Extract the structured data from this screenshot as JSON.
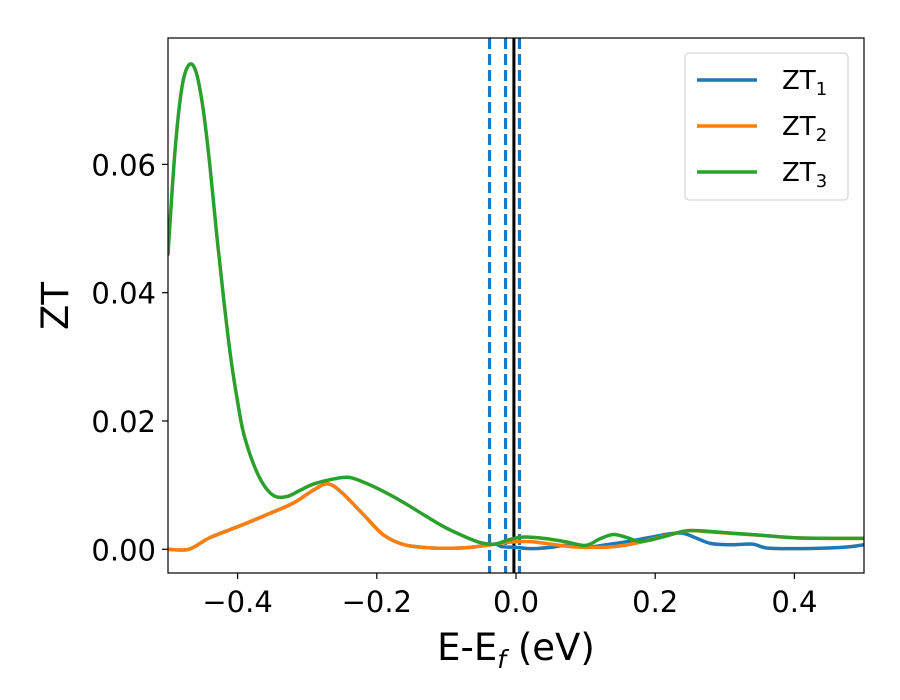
{
  "chart_data": {
    "type": "line",
    "title": "",
    "xlabel_main": "E-E",
    "xlabel_sub": "f",
    "xlabel_unit": " (eV)",
    "ylabel": "ZT",
    "xlim": [
      -0.5,
      0.5
    ],
    "ylim": [
      -0.0037,
      0.0797
    ],
    "grid": false,
    "legend_position": "top-right",
    "x_ticks": [
      {
        "value": -0.4,
        "label": "−0.4"
      },
      {
        "value": -0.2,
        "label": "−0.2"
      },
      {
        "value": 0.0,
        "label": "0.0"
      },
      {
        "value": 0.2,
        "label": "0.2"
      },
      {
        "value": 0.4,
        "label": "0.4"
      }
    ],
    "y_ticks": [
      {
        "value": 0.0,
        "label": "0.00"
      },
      {
        "value": 0.02,
        "label": "0.02"
      },
      {
        "value": 0.04,
        "label": "0.04"
      },
      {
        "value": 0.06,
        "label": "0.06"
      }
    ],
    "vertical_lines": [
      {
        "x": -0.038,
        "style": "dashed",
        "color": "#1f77b4"
      },
      {
        "x": -0.015,
        "style": "dashed",
        "color": "#1f77b4"
      },
      {
        "x": 0.005,
        "style": "dashed",
        "color": "#1f77b4"
      },
      {
        "x": -0.003,
        "style": "solid",
        "color": "#000000"
      }
    ],
    "series": [
      {
        "name_main": "ZT",
        "name_sub": "1",
        "color": "#1f77b4",
        "points": [
          [
            -0.5,
            0.0
          ],
          [
            -0.47,
            0.0
          ],
          [
            -0.44,
            0.0018
          ],
          [
            -0.4,
            0.0035
          ],
          [
            -0.36,
            0.0053
          ],
          [
            -0.32,
            0.0072
          ],
          [
            -0.29,
            0.0093
          ],
          [
            -0.27,
            0.0102
          ],
          [
            -0.25,
            0.0088
          ],
          [
            -0.22,
            0.0055
          ],
          [
            -0.19,
            0.0022
          ],
          [
            -0.16,
            0.0007
          ],
          [
            -0.12,
            0.0002
          ],
          [
            -0.08,
            0.0002
          ],
          [
            -0.05,
            0.0005
          ],
          [
            -0.03,
            0.0008
          ],
          [
            -0.02,
            0.0004
          ],
          [
            0.0,
            0.0003
          ],
          [
            0.02,
            0.0001
          ],
          [
            0.05,
            0.0003
          ],
          [
            0.07,
            0.0006
          ],
          [
            0.1,
            0.0003
          ],
          [
            0.13,
            0.0007
          ],
          [
            0.16,
            0.0012
          ],
          [
            0.19,
            0.0018
          ],
          [
            0.22,
            0.0024
          ],
          [
            0.24,
            0.0025
          ],
          [
            0.26,
            0.0017
          ],
          [
            0.28,
            0.0009
          ],
          [
            0.31,
            0.0007
          ],
          [
            0.34,
            0.0008
          ],
          [
            0.36,
            0.0002
          ],
          [
            0.4,
            0.0001
          ],
          [
            0.45,
            0.0002
          ],
          [
            0.48,
            0.0004
          ],
          [
            0.5,
            0.0007
          ]
        ]
      },
      {
        "name_main": "ZT",
        "name_sub": "2",
        "color": "#ff7f0e",
        "points": [
          [
            -0.5,
            0.0
          ],
          [
            -0.47,
            0.0
          ],
          [
            -0.44,
            0.0018
          ],
          [
            -0.4,
            0.0035
          ],
          [
            -0.36,
            0.0053
          ],
          [
            -0.32,
            0.0072
          ],
          [
            -0.29,
            0.0093
          ],
          [
            -0.27,
            0.0102
          ],
          [
            -0.25,
            0.0088
          ],
          [
            -0.22,
            0.0055
          ],
          [
            -0.19,
            0.0022
          ],
          [
            -0.16,
            0.0007
          ],
          [
            -0.12,
            0.0002
          ],
          [
            -0.08,
            0.0002
          ],
          [
            -0.05,
            0.0005
          ],
          [
            -0.03,
            0.0008
          ],
          [
            -0.01,
            0.0011
          ],
          [
            0.02,
            0.0012
          ],
          [
            0.05,
            0.0008
          ],
          [
            0.08,
            0.0004
          ],
          [
            0.11,
            0.0003
          ],
          [
            0.14,
            0.0004
          ],
          [
            0.17,
            0.0009
          ],
          [
            0.2,
            0.0017
          ],
          [
            0.23,
            0.0025
          ],
          [
            0.25,
            0.0029
          ],
          [
            0.28,
            0.0027
          ],
          [
            0.32,
            0.0024
          ],
          [
            0.36,
            0.0021
          ],
          [
            0.4,
            0.0018
          ],
          [
            0.45,
            0.0017
          ],
          [
            0.5,
            0.0017
          ]
        ]
      },
      {
        "name_main": "ZT",
        "name_sub": "3",
        "color": "#2ca02c",
        "points": [
          [
            -0.5,
            0.046
          ],
          [
            -0.49,
            0.062
          ],
          [
            -0.48,
            0.072
          ],
          [
            -0.47,
            0.0755
          ],
          [
            -0.46,
            0.0745
          ],
          [
            -0.45,
            0.069
          ],
          [
            -0.44,
            0.06
          ],
          [
            -0.43,
            0.049
          ],
          [
            -0.42,
            0.039
          ],
          [
            -0.41,
            0.03
          ],
          [
            -0.4,
            0.023
          ],
          [
            -0.39,
            0.0175
          ],
          [
            -0.37,
            0.0115
          ],
          [
            -0.35,
            0.0085
          ],
          [
            -0.33,
            0.0082
          ],
          [
            -0.31,
            0.0092
          ],
          [
            -0.29,
            0.0102
          ],
          [
            -0.26,
            0.011
          ],
          [
            -0.24,
            0.0112
          ],
          [
            -0.22,
            0.0105
          ],
          [
            -0.19,
            0.009
          ],
          [
            -0.16,
            0.0072
          ],
          [
            -0.13,
            0.0052
          ],
          [
            -0.1,
            0.0033
          ],
          [
            -0.07,
            0.0018
          ],
          [
            -0.05,
            0.001
          ],
          [
            -0.03,
            0.0008
          ],
          [
            -0.01,
            0.0015
          ],
          [
            0.01,
            0.0019
          ],
          [
            0.04,
            0.0017
          ],
          [
            0.07,
            0.0012
          ],
          [
            0.1,
            0.0006
          ],
          [
            0.12,
            0.0016
          ],
          [
            0.14,
            0.0023
          ],
          [
            0.16,
            0.0018
          ],
          [
            0.18,
            0.0012
          ],
          [
            0.21,
            0.0019
          ],
          [
            0.24,
            0.0028
          ],
          [
            0.26,
            0.0029
          ],
          [
            0.3,
            0.0026
          ],
          [
            0.35,
            0.0022
          ],
          [
            0.4,
            0.0018
          ],
          [
            0.45,
            0.0017
          ],
          [
            0.5,
            0.0017
          ]
        ]
      }
    ]
  }
}
